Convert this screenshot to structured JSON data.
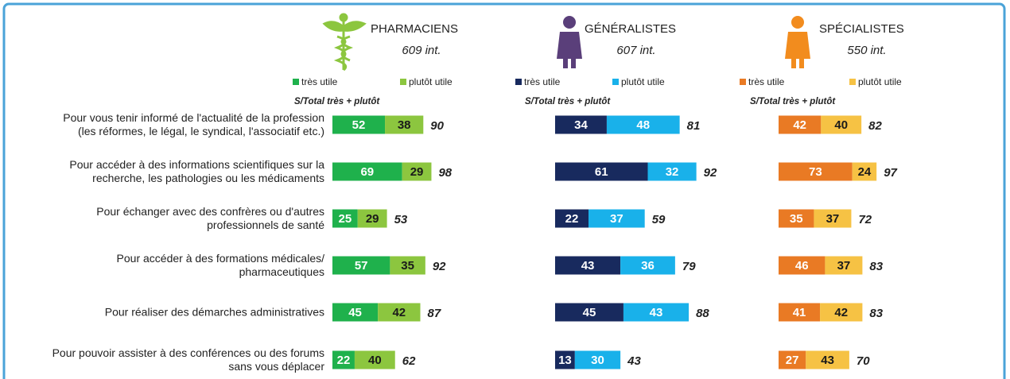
{
  "chart_data": [
    {
      "type": "bar",
      "stacked": true,
      "orientation": "horizontal",
      "title": "PHARMACIENS",
      "subtitle": "609 int.",
      "categories": [
        "Pour vous tenir informé de l'actualité de la profession\n(les réformes, le légal, le syndical, l'associatif etc.)",
        "Pour accéder à des informations scientifiques sur la\nrecherche, les pathologies ou les médicaments",
        "Pour échanger avec des confrères ou d'autres\nprofessionnels de santé",
        "Pour accéder à des formations médicales/\npharmaceutiques",
        "Pour réaliser des démarches administratives",
        "Pour pouvoir assister à des conférences ou des forums\nsans vous déplacer"
      ],
      "series": [
        {
          "name": "très utile",
          "color": "#1fb14c",
          "values": [
            52,
            69,
            25,
            57,
            45,
            22
          ]
        },
        {
          "name": "plutôt utile",
          "color": "#8cc63f",
          "values": [
            38,
            29,
            29,
            35,
            42,
            40
          ]
        }
      ],
      "totals_label": "S/Total très + plutôt",
      "totals": [
        90,
        98,
        53,
        92,
        87,
        62
      ]
    },
    {
      "type": "bar",
      "stacked": true,
      "orientation": "horizontal",
      "title": "GÉNÉRALISTES",
      "subtitle": "607 int.",
      "series": [
        {
          "name": "très utile",
          "color": "#182a5e",
          "values": [
            34,
            61,
            22,
            43,
            45,
            13
          ]
        },
        {
          "name": "plutôt utile",
          "color": "#19b1ea",
          "values": [
            48,
            32,
            37,
            36,
            43,
            30
          ]
        }
      ],
      "totals_label": "S/Total très + plutôt",
      "totals": [
        81,
        92,
        59,
        79,
        88,
        43
      ]
    },
    {
      "type": "bar",
      "stacked": true,
      "orientation": "horizontal",
      "title": "SPÉCIALISTES",
      "subtitle": "550 int.",
      "series": [
        {
          "name": "très utile",
          "color": "#e97a24",
          "values": [
            42,
            73,
            35,
            46,
            41,
            27
          ]
        },
        {
          "name": "plutôt utile",
          "color": "#f6c244",
          "values": [
            40,
            24,
            37,
            37,
            42,
            43
          ]
        }
      ],
      "totals_label": "S/Total très + plutôt",
      "totals": [
        82,
        97,
        72,
        83,
        83,
        70
      ]
    }
  ]
}
